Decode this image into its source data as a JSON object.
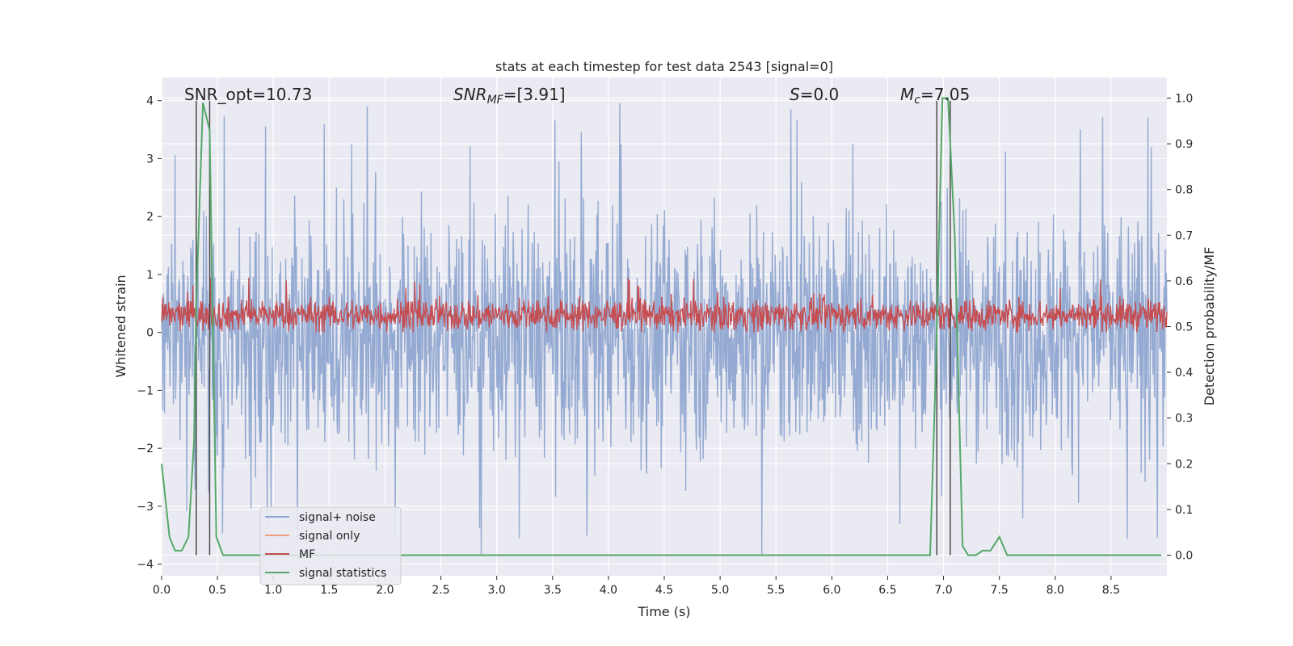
{
  "chart_data": {
    "type": "line",
    "title": "stats at each timestep for test data 2543 [signal=0]",
    "xlabel": "Time (s)",
    "ylabel": "Whitened strain",
    "y2label": "Detection probability/MF",
    "xlim": [
      0,
      9.0
    ],
    "ylim": [
      -4.2,
      4.4
    ],
    "y2lim": [
      -0.045,
      1.045
    ],
    "xticks": [
      "0.0",
      "0.5",
      "1.0",
      "1.5",
      "2.0",
      "2.5",
      "3.0",
      "3.5",
      "4.0",
      "4.5",
      "5.0",
      "5.5",
      "6.0",
      "6.5",
      "7.0",
      "7.5",
      "8.0",
      "8.5"
    ],
    "yticks": [
      "−4",
      "−3",
      "−2",
      "−1",
      "0",
      "1",
      "2",
      "3",
      "4"
    ],
    "y2ticks": [
      "0.0",
      "0.1",
      "0.2",
      "0.3",
      "0.4",
      "0.5",
      "0.6",
      "0.7",
      "0.8",
      "0.9",
      "1.0"
    ],
    "grid": true,
    "legend_position": "lower-left",
    "annotations": {
      "snr_opt": "SNR_opt=10.73",
      "snr_mf_main": "SNR",
      "snr_mf_sub": "MF",
      "snr_mf_value": "=[3.91]",
      "s_main": "S",
      "s_value": "=0.0",
      "mc_main": "M",
      "mc_sub": "c",
      "mc_value": "=7.05"
    },
    "vertical_lines_x": [
      0.31,
      0.43,
      6.94,
      7.06
    ],
    "series": [
      {
        "name": "signal+ noise",
        "color": "#8fa6d0",
        "axis": "left",
        "kind": "noise",
        "envelope_upper": 2.5,
        "envelope_lower": -2.5,
        "extreme_max": 4.0,
        "extreme_min": -3.9
      },
      {
        "name": "signal only",
        "color": "#ee9f7c",
        "axis": "left",
        "values": []
      },
      {
        "name": "MF",
        "color": "#c44e52",
        "axis": "left",
        "kind": "noise",
        "envelope_upper": 0.7,
        "envelope_lower": 0.0,
        "extreme_max": 0.95
      },
      {
        "name": "signal statistics",
        "color": "#55a868",
        "axis": "right",
        "x": [
          0.0,
          0.07,
          0.12,
          0.18,
          0.24,
          0.29,
          0.31,
          0.37,
          0.43,
          0.49,
          0.55,
          0.7,
          1.0,
          2.0,
          3.0,
          4.0,
          5.0,
          6.0,
          6.88,
          6.93,
          6.99,
          7.04,
          7.1,
          7.17,
          7.22,
          7.29,
          7.35,
          7.42,
          7.5,
          7.57,
          7.65,
          8.0,
          8.5,
          8.95
        ],
        "values": [
          0.2,
          0.04,
          0.01,
          0.01,
          0.04,
          0.25,
          0.55,
          0.99,
          0.93,
          0.04,
          0.0,
          0.0,
          0.0,
          0.0,
          0.0,
          0.0,
          0.0,
          0.0,
          0.0,
          0.4,
          1.0,
          1.0,
          0.7,
          0.02,
          0.0,
          0.0,
          0.01,
          0.01,
          0.04,
          0.0,
          0.0,
          0.0,
          0.0,
          0.0
        ]
      }
    ]
  }
}
